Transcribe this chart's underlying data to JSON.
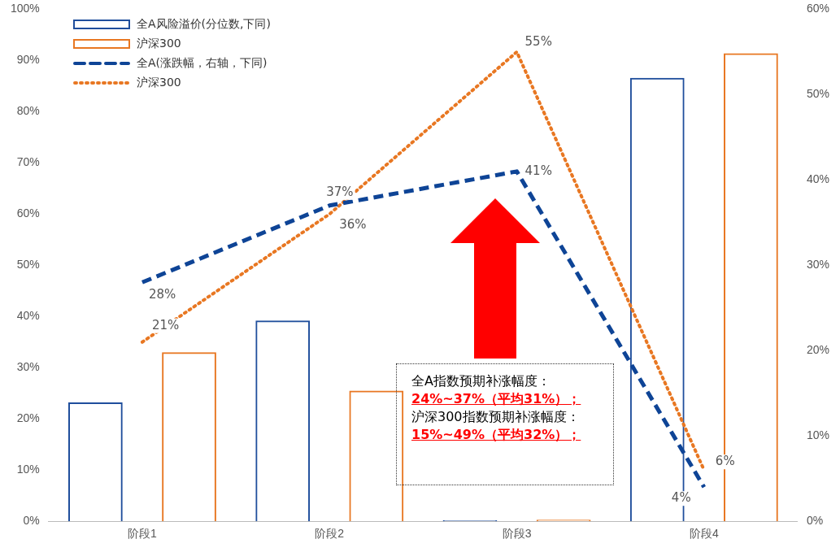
{
  "chart_data": {
    "type": "bar",
    "categories": [
      "阶段1",
      "阶段2",
      "阶段3",
      "阶段4"
    ],
    "series": [
      {
        "name": "全A风险溢价(分位数,下同)",
        "color": "#1f4e9c",
        "values": [
          23.2,
          39.2,
          0.2,
          86.6
        ]
      },
      {
        "name": "沪深300",
        "color": "#e87722",
        "values": [
          33,
          25.5,
          0.3,
          91.4
        ]
      },
      {
        "name": "全A(涨跌幅，右轴，下同)",
        "type": "line",
        "axis": "y2",
        "color": "#0e4496",
        "line_style": "dashed",
        "marker": "none",
        "values": [
          28,
          37,
          41,
          4
        ],
        "value_labels": [
          "28%",
          "37%",
          "41%",
          "4%"
        ]
      },
      {
        "name": "沪深300",
        "type": "line",
        "axis": "y2",
        "color": "#e87722",
        "line_style": "dotted",
        "marker": "none",
        "values": [
          21,
          36,
          55,
          6
        ],
        "value_labels": [
          "21%",
          "36%",
          "55%",
          "6%"
        ]
      }
    ],
    "ylim": [
      0,
      100
    ],
    "yticks": [
      {
        "value": 0,
        "label": "0%"
      },
      {
        "value": 10,
        "label": "10%"
      },
      {
        "value": 20,
        "label": "20%"
      },
      {
        "value": 30,
        "label": "30%"
      },
      {
        "value": 40,
        "label": "40%"
      },
      {
        "value": 50,
        "label": "50%"
      },
      {
        "value": 60,
        "label": "60%"
      },
      {
        "value": 70,
        "label": "70%"
      },
      {
        "value": 80,
        "label": "80%"
      },
      {
        "value": 90,
        "label": "90%"
      },
      {
        "value": 100,
        "label": "100%"
      }
    ],
    "y2lim": [
      0,
      60
    ],
    "y2ticks": [
      {
        "value": 0,
        "label": "0%"
      },
      {
        "value": 10,
        "label": "10%"
      },
      {
        "value": 20,
        "label": "20%"
      },
      {
        "value": 30,
        "label": "30%"
      },
      {
        "value": 40,
        "label": "40%"
      },
      {
        "value": 50,
        "label": "50%"
      },
      {
        "value": 60,
        "label": "60%"
      }
    ],
    "annotations": [
      "全A指数预期补涨幅度：",
      "24%~37%（平均31%）；",
      "沪深300指数预期补涨幅度：",
      "15%~49%（平均32%）；"
    ],
    "grid": false,
    "legend": "top left"
  }
}
